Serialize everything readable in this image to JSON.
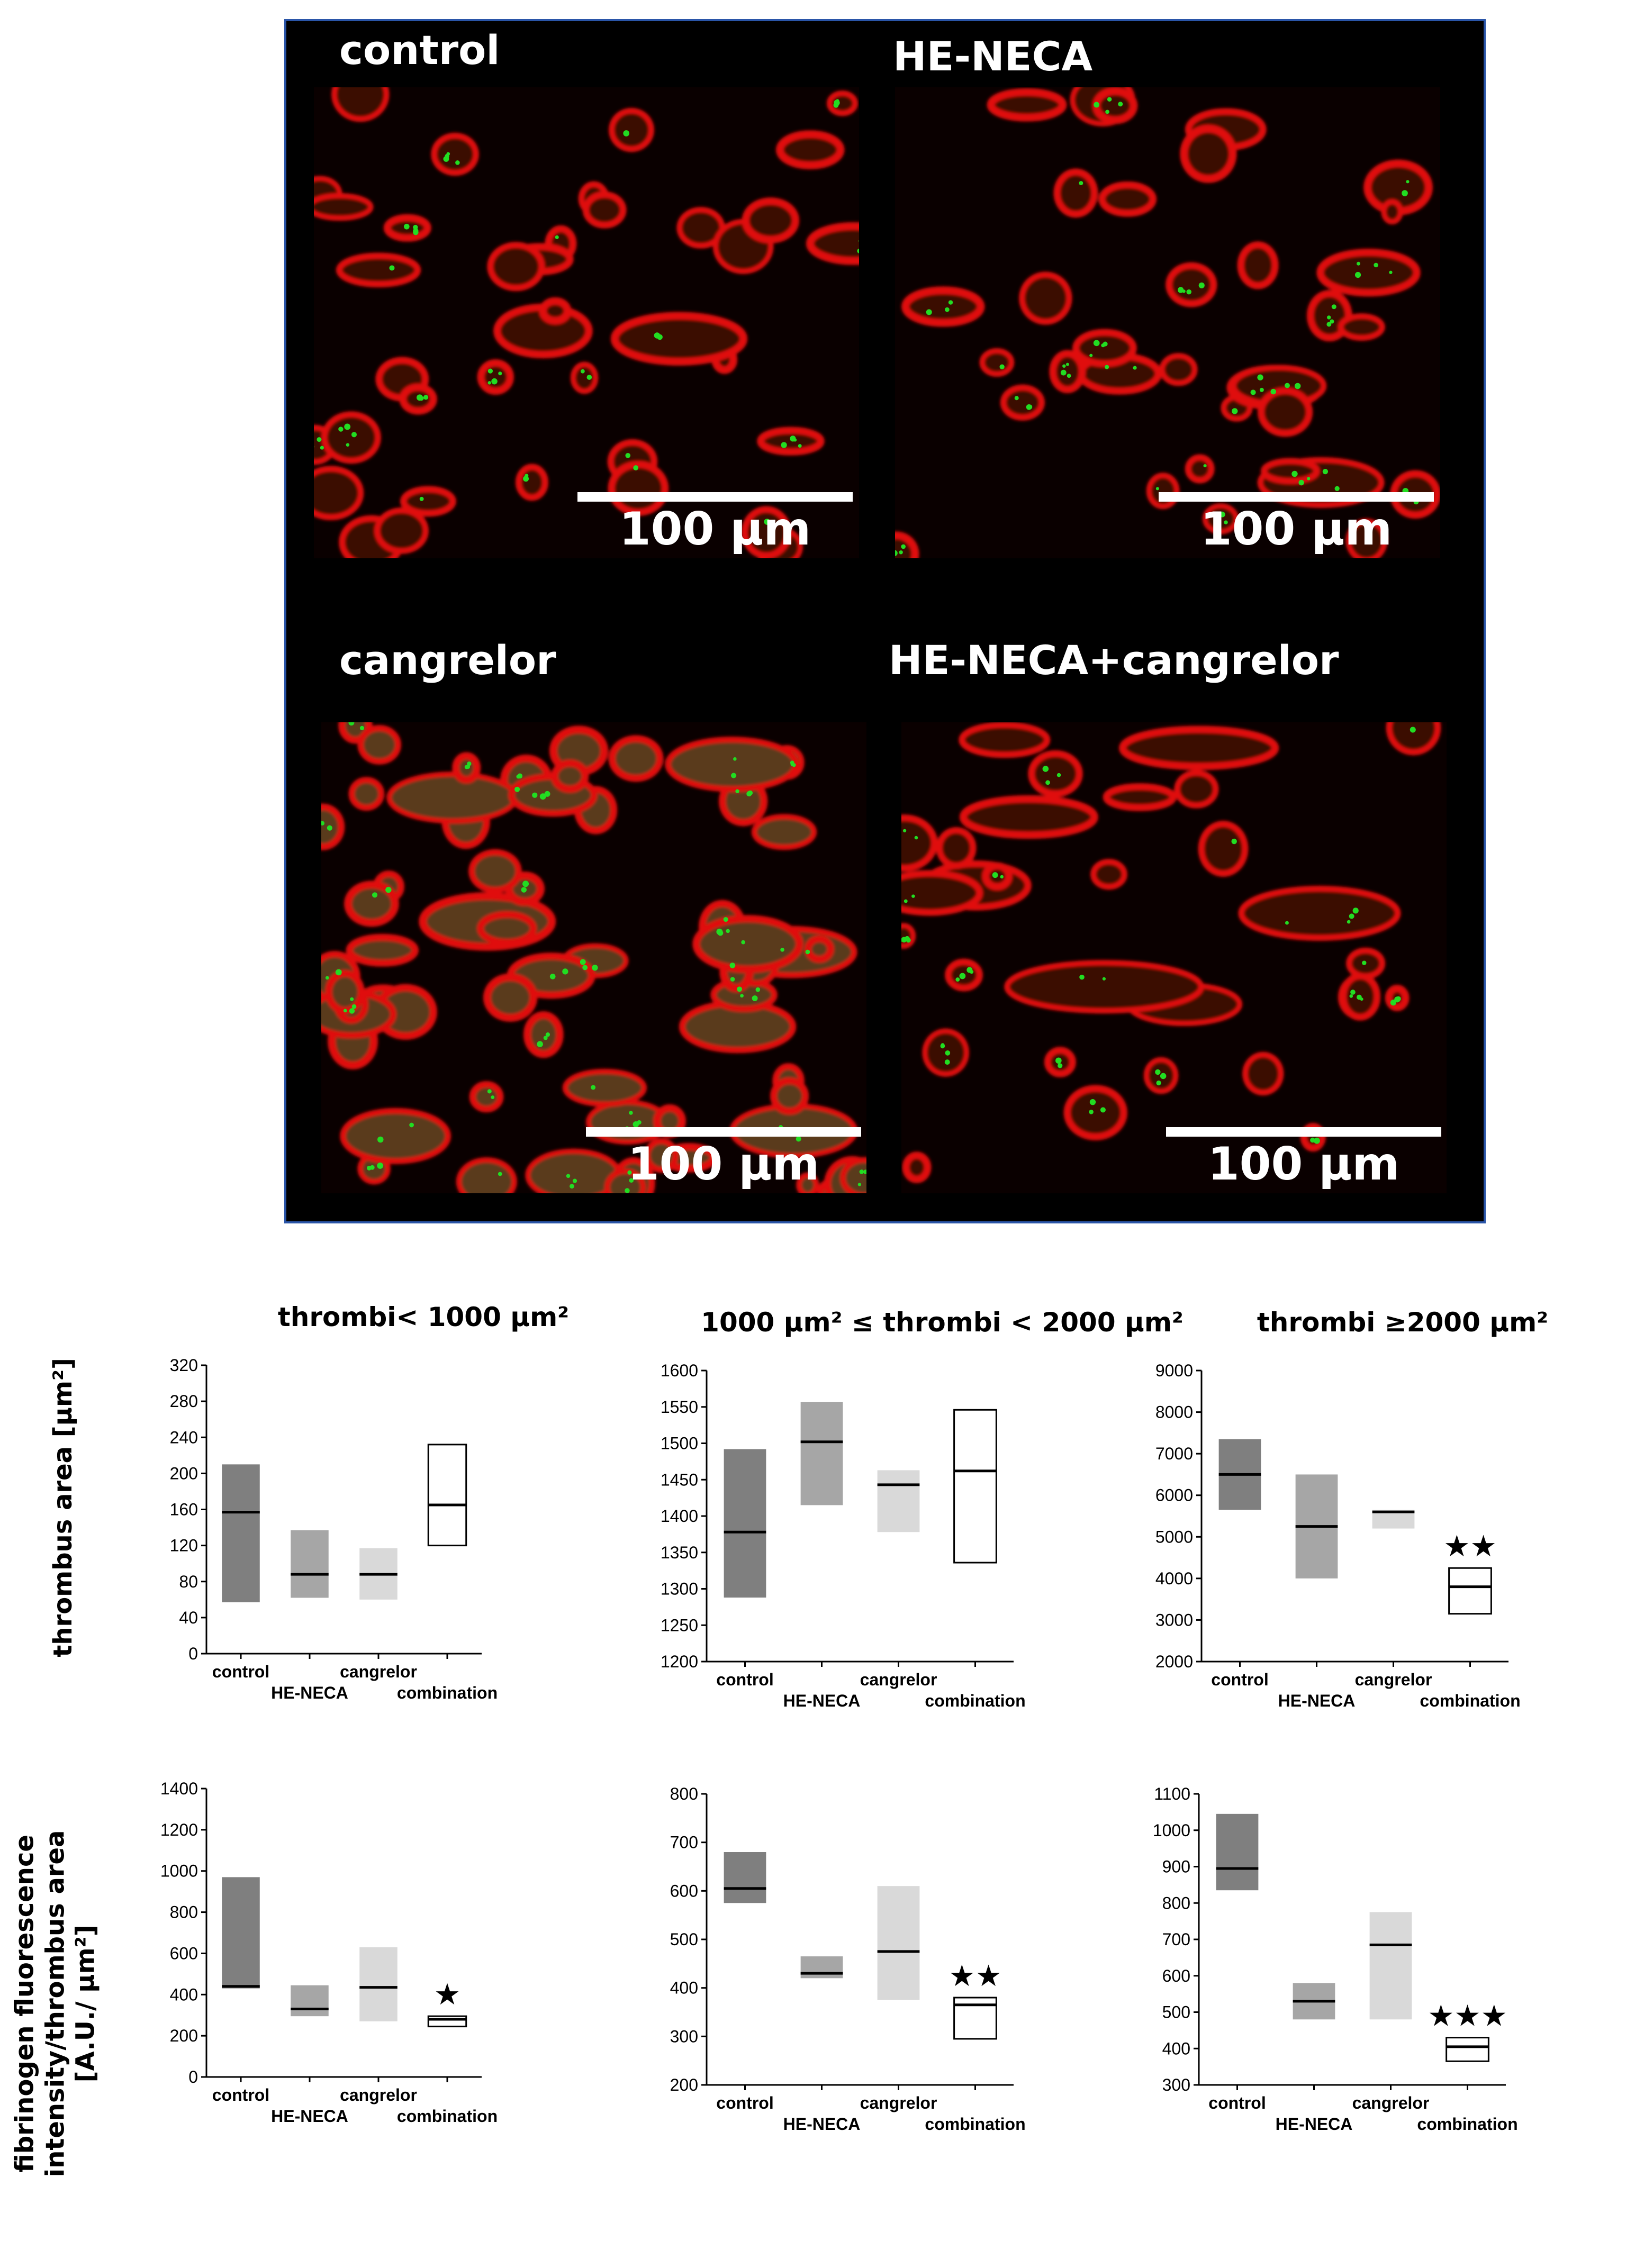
{
  "microscopy": {
    "panels": [
      {
        "label": "control",
        "scale_bar": "100 µm"
      },
      {
        "label": "HE-NECA",
        "scale_bar": "100 µm"
      },
      {
        "label": "cangrelor",
        "scale_bar": "100 µm"
      },
      {
        "label": "HE-NECA+cangrelor",
        "scale_bar": "100 µm"
      }
    ]
  },
  "colors": {
    "control": "#7f7f7f",
    "HE-NECA": "#a6a6a6",
    "cangrelor": "#d9d9d9",
    "combination": "#ffffff",
    "platelet": "#e01010",
    "fibrinogen": "#22dd22"
  },
  "column_titles": [
    "thrombi< 1000 µm²",
    "1000 µm² ≤ thrombi < 2000 µm²",
    "thrombi ≥2000 µm²"
  ],
  "row_labels": {
    "area": "thrombus area [µm²]",
    "fluorescence": [
      "fibrinogen fluorescence",
      "intensity/thrombus area",
      "[A.U./ µm²]"
    ]
  },
  "chart_data": [
    {
      "type": "box",
      "row": "area",
      "col": 0,
      "categories": [
        "control",
        "HE-NECA",
        "cangrelor",
        "combination"
      ],
      "ylim": [
        0,
        320
      ],
      "yticks": [
        0,
        40,
        80,
        120,
        160,
        200,
        240,
        280,
        320
      ],
      "boxes": [
        {
          "low": 57,
          "high": 210,
          "median": 157
        },
        {
          "low": 62,
          "high": 137,
          "median": 88
        },
        {
          "low": 60,
          "high": 117,
          "median": 88
        },
        {
          "low": 120,
          "high": 232,
          "median": 165
        }
      ],
      "significance": [
        "",
        "",
        "",
        ""
      ]
    },
    {
      "type": "box",
      "row": "area",
      "col": 1,
      "categories": [
        "control",
        "HE-NECA",
        "cangrelor",
        "combination"
      ],
      "ylim": [
        1200,
        1600
      ],
      "yticks": [
        1200,
        1250,
        1300,
        1350,
        1400,
        1450,
        1500,
        1550,
        1600
      ],
      "boxes": [
        {
          "low": 1288,
          "high": 1492,
          "median": 1378
        },
        {
          "low": 1415,
          "high": 1557,
          "median": 1502
        },
        {
          "low": 1378,
          "high": 1463,
          "median": 1443
        },
        {
          "low": 1336,
          "high": 1546,
          "median": 1462
        }
      ],
      "significance": [
        "",
        "",
        "",
        ""
      ]
    },
    {
      "type": "box",
      "row": "area",
      "col": 2,
      "categories": [
        "control",
        "HE-NECA",
        "cangrelor",
        "combination"
      ],
      "ylim": [
        2000,
        9000
      ],
      "yticks": [
        2000,
        3000,
        4000,
        5000,
        6000,
        7000,
        8000,
        9000
      ],
      "boxes": [
        {
          "low": 5650,
          "high": 7350,
          "median": 6500
        },
        {
          "low": 4000,
          "high": 6500,
          "median": 5250
        },
        {
          "low": 5200,
          "high": 5650,
          "median": 5600
        },
        {
          "low": 3150,
          "high": 4250,
          "median": 3800
        }
      ],
      "significance": [
        "",
        "",
        "",
        "★★"
      ]
    },
    {
      "type": "box",
      "row": "fluorescence",
      "col": 0,
      "categories": [
        "control",
        "HE-NECA",
        "cangrelor",
        "combination"
      ],
      "ylim": [
        0,
        1400
      ],
      "yticks": [
        0,
        200,
        400,
        600,
        800,
        1000,
        1200,
        1400
      ],
      "boxes": [
        {
          "low": 430,
          "high": 970,
          "median": 440
        },
        {
          "low": 295,
          "high": 445,
          "median": 330
        },
        {
          "low": 270,
          "high": 630,
          "median": 435
        },
        {
          "low": 245,
          "high": 295,
          "median": 280
        }
      ],
      "significance": [
        "",
        "",
        "",
        "★"
      ]
    },
    {
      "type": "box",
      "row": "fluorescence",
      "col": 1,
      "categories": [
        "control",
        "HE-NECA",
        "cangrelor",
        "combination"
      ],
      "ylim": [
        200,
        800
      ],
      "yticks": [
        200,
        300,
        400,
        500,
        600,
        700,
        800
      ],
      "boxes": [
        {
          "low": 575,
          "high": 680,
          "median": 605
        },
        {
          "low": 420,
          "high": 465,
          "median": 430
        },
        {
          "low": 375,
          "high": 610,
          "median": 475
        },
        {
          "low": 295,
          "high": 380,
          "median": 365
        }
      ],
      "significance": [
        "",
        "",
        "",
        "★★"
      ]
    },
    {
      "type": "box",
      "row": "fluorescence",
      "col": 2,
      "categories": [
        "control",
        "HE-NECA",
        "cangrelor",
        "combination"
      ],
      "ylim": [
        300,
        1100
      ],
      "yticks": [
        300,
        400,
        500,
        600,
        700,
        800,
        900,
        1000,
        1100
      ],
      "boxes": [
        {
          "low": 835,
          "high": 1045,
          "median": 895
        },
        {
          "low": 480,
          "high": 580,
          "median": 530
        },
        {
          "low": 480,
          "high": 775,
          "median": 685
        },
        {
          "low": 365,
          "high": 430,
          "median": 405
        }
      ],
      "significance": [
        "",
        "",
        "",
        "★★★"
      ]
    }
  ]
}
